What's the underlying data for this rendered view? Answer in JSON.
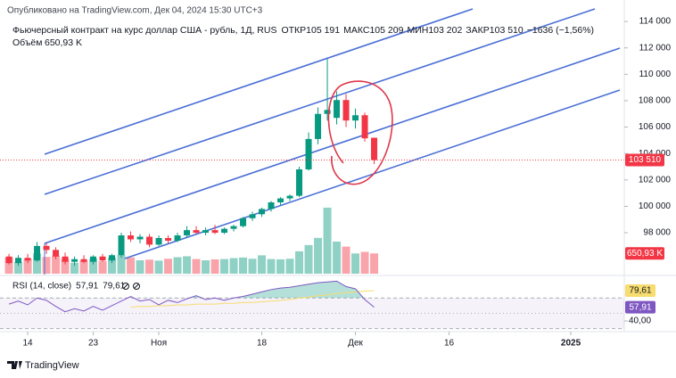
{
  "chart_data": {
    "type": "candlestick",
    "published": "Опубликовано на TradingView.com, Дек 04, 2024 15:30 UTC+3",
    "title": "Фьючерсный контракт на курс доллар США - рубль, 1Д, RUS",
    "ohlc": [
      {
        "label": "ОТКР",
        "value": "105 191"
      },
      {
        "label": "МАКС",
        "value": "105 209"
      },
      {
        "label": "МИН",
        "value": "103 202"
      },
      {
        "label": "ЗАКР",
        "value": "103 510"
      }
    ],
    "change": "−1636 (−1,56%)",
    "volume_title": "Объём",
    "volume_label": "650,93 K",
    "price_label": "103 510",
    "rsi_title": "RSI (14, close)",
    "rsi_label": "57,91",
    "rsi_ma_label": "79,61",
    "brand": "TradingView",
    "up_color": "#089981",
    "down_color": "#f23645",
    "rsi_color": "#7e57c2",
    "rsi_ma_color": "#f7dc6f",
    "open": [
      96200,
      95700,
      96100,
      95900,
      97000,
      96700,
      96200,
      95800,
      96000,
      95800,
      96200,
      95900,
      96300,
      97800,
      97500,
      97700,
      97100,
      97600,
      97400,
      97800,
      98200,
      98000,
      98200,
      98000,
      98300,
      98500,
      99100,
      99400,
      99800,
      100300,
      100600,
      100800,
      102800,
      105100,
      107000,
      106700,
      108050,
      106500,
      106900,
      105191
    ],
    "high": [
      96400,
      96300,
      96400,
      97300,
      97200,
      96900,
      96500,
      96200,
      96300,
      96300,
      96400,
      96400,
      98000,
      98100,
      97900,
      97900,
      97800,
      97800,
      98000,
      98500,
      98500,
      98400,
      98600,
      98400,
      98600,
      99200,
      99600,
      99900,
      100400,
      100700,
      100900,
      103000,
      105600,
      107500,
      111160,
      108700,
      108500,
      107400,
      107100,
      105209
    ],
    "low": [
      95600,
      95500,
      95700,
      95800,
      96400,
      96000,
      95600,
      95500,
      95700,
      95600,
      95800,
      95700,
      96100,
      97300,
      97200,
      96900,
      97000,
      97200,
      97300,
      97600,
      97900,
      97800,
      97900,
      97900,
      98100,
      98400,
      98900,
      99200,
      99600,
      100100,
      100400,
      100700,
      102700,
      104700,
      106500,
      106200,
      106000,
      105900,
      104900,
      103202
    ],
    "close": [
      95700,
      96100,
      95900,
      97000,
      96700,
      96200,
      95800,
      96000,
      95800,
      96200,
      95900,
      96300,
      97800,
      97500,
      97700,
      97100,
      97600,
      97400,
      97800,
      98200,
      98000,
      98200,
      98000,
      98300,
      98500,
      99100,
      99400,
      99800,
      100300,
      100600,
      100800,
      102800,
      105100,
      107000,
      107300,
      108050,
      106500,
      106900,
      105150,
      103510
    ],
    "volume": [
      520000,
      380000,
      470000,
      650000,
      540000,
      580000,
      470000,
      350000,
      420000,
      480000,
      400000,
      520000,
      600000,
      520000,
      430000,
      450000,
      420000,
      480000,
      530000,
      560000,
      470000,
      430000,
      460000,
      470000,
      500000,
      520000,
      480000,
      590000,
      470000,
      460000,
      480000,
      720000,
      920000,
      1150000,
      2120000,
      1030000,
      870000,
      650000,
      700000,
      650930
    ],
    "volume_ylim": [
      0,
      8500000
    ],
    "ylim": [
      94900,
      114950
    ],
    "yticks": [
      {
        "value": 98000,
        "label": "98 000"
      },
      {
        "value": 100000,
        "label": "100 000"
      },
      {
        "value": 102000,
        "label": "102 000"
      },
      {
        "value": 104000,
        "label": "104 000"
      },
      {
        "value": 106000,
        "label": "106 000"
      },
      {
        "value": 108000,
        "label": "108 000"
      },
      {
        "value": 110000,
        "label": "110 000"
      },
      {
        "value": 112000,
        "label": "112 000"
      },
      {
        "value": 114000,
        "label": "114 000"
      }
    ],
    "xlim": [
      -0.48,
      65.71
    ],
    "xticks": [
      {
        "value": 2,
        "label": "14"
      },
      {
        "value": 9,
        "label": "23"
      },
      {
        "value": 16,
        "label": "Ноя"
      },
      {
        "value": 27,
        "label": "18"
      },
      {
        "value": 37,
        "label": "Дек"
      },
      {
        "value": 47,
        "label": "16"
      },
      {
        "value": 60,
        "label": "2025"
      }
    ],
    "rsi_values": [
      62,
      66,
      61,
      70,
      67,
      59,
      52,
      56,
      53,
      59,
      54,
      60,
      66,
      72,
      66,
      68,
      61,
      67,
      64,
      69,
      73,
      68,
      70,
      67,
      70,
      72,
      75,
      78,
      81,
      83,
      84,
      86,
      88,
      90,
      91,
      92,
      85,
      82,
      68,
      57.91
    ],
    "rsi_ma_values": [
      null,
      null,
      null,
      null,
      null,
      null,
      null,
      null,
      null,
      null,
      null,
      null,
      null,
      58,
      59,
      59,
      60,
      60,
      61,
      61,
      62,
      62,
      62,
      63,
      63,
      64,
      64,
      65,
      66,
      67,
      68,
      70,
      71,
      73,
      74,
      76,
      77,
      78,
      79,
      79.61
    ],
    "rsi_ylim": [
      30,
      100
    ],
    "rsi_yticks": [
      {
        "value": 40,
        "label": "40,00"
      }
    ],
    "rsi_bands": [
      70,
      50,
      30
    ]
  }
}
